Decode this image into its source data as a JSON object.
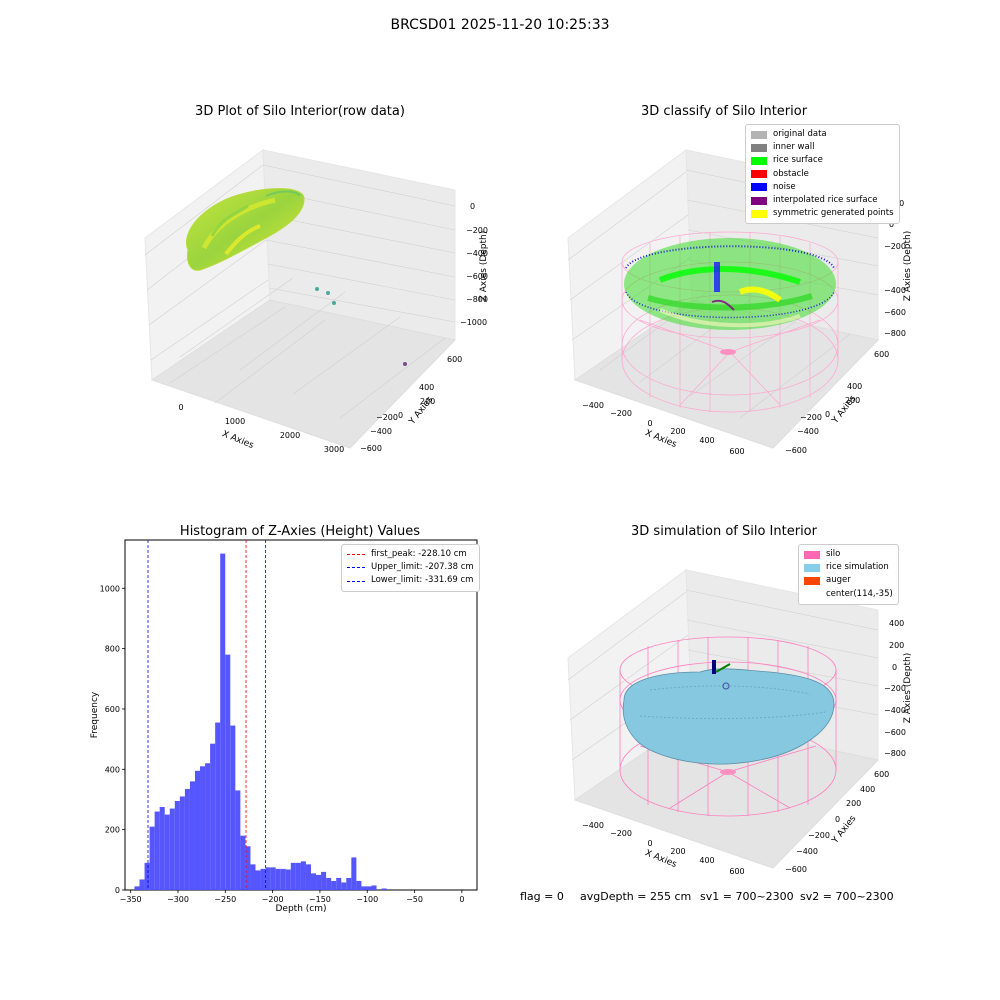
{
  "header": {
    "title": "BRCSD01 2025-11-20 10:25:33"
  },
  "panels": {
    "raw": {
      "title": "3D Plot of Silo Interior(row data)",
      "xlabel": "X Axies",
      "ylabel": "Y Axies",
      "zlabel": "Z Axies (Depth)",
      "xticks": [
        "0",
        "1000",
        "2000",
        "3000"
      ],
      "yticks": [
        "600",
        "400",
        "200",
        "0",
        "−200",
        "−400",
        "−600"
      ],
      "zticks": [
        "0",
        "−200",
        "−400",
        "−600",
        "−800",
        "−1000"
      ]
    },
    "classify": {
      "title": "3D classify of Silo Interior",
      "xlabel": "X Axies",
      "ylabel": "Y Axies",
      "zlabel": "Z Axies (Depth)",
      "xticks": [
        "−400",
        "−200",
        "0",
        "200",
        "400",
        "600"
      ],
      "yticks": [
        "600",
        "400",
        "200",
        "0",
        "−200",
        "−400",
        "−600"
      ],
      "zticks": [
        "200",
        "0",
        "−200",
        "−400",
        "−600",
        "−800"
      ],
      "legend": [
        {
          "label": "original data",
          "color": "#b3b3b3"
        },
        {
          "label": "inner wall",
          "color": "#808080"
        },
        {
          "label": "rice surface",
          "color": "#00ff00"
        },
        {
          "label": "obstacle",
          "color": "#ff0000"
        },
        {
          "label": "noise",
          "color": "#0000ff"
        },
        {
          "label": "interpolated rice surface",
          "color": "#800080"
        },
        {
          "label": "symmetric generated points",
          "color": "#ffff00"
        }
      ]
    },
    "simulation": {
      "title": "3D simulation of Silo Interior",
      "xlabel": "X Axies",
      "ylabel": "Y Axies",
      "zlabel": "Z Axies (Depth)",
      "xticks": [
        "−400",
        "−200",
        "0",
        "200",
        "400",
        "600"
      ],
      "yticks": [
        "600",
        "400",
        "200",
        "0",
        "−200",
        "−400",
        "−600"
      ],
      "zticks": [
        "400",
        "200",
        "0",
        "−200",
        "−400",
        "−600",
        "−800"
      ],
      "legend": [
        {
          "label": "silo",
          "color": "#ff69b4"
        },
        {
          "label": "rice simulation",
          "color": "#87ceeb"
        },
        {
          "label": "auger",
          "color": "#ff4500"
        },
        {
          "label": "center(114,-35)",
          "color": ""
        }
      ]
    }
  },
  "chart_data": [
    {
      "type": "histogram",
      "title": "Histogram of Z-Axies (Height) Values",
      "xlabel": "Depth (cm)",
      "ylabel": "Frequency",
      "xlim": [
        -356,
        16
      ],
      "ylim": [
        0,
        1160
      ],
      "xticks": [
        -350,
        -300,
        -250,
        -200,
        -150,
        -100,
        -50,
        0
      ],
      "xtick_labels": [
        "−350",
        "−300",
        "−250",
        "−200",
        "−150",
        "−100",
        "−50",
        "0"
      ],
      "yticks": [
        0,
        200,
        400,
        600,
        800,
        1000
      ],
      "color": "#4d4dff",
      "bin_start": -346,
      "bin_width": 5.33,
      "values": [
        12,
        35,
        90,
        210,
        260,
        275,
        250,
        270,
        295,
        310,
        335,
        360,
        395,
        410,
        420,
        485,
        555,
        1115,
        780,
        545,
        330,
        180,
        145,
        85,
        65,
        70,
        75,
        75,
        70,
        70,
        68,
        90,
        90,
        95,
        85,
        55,
        50,
        60,
        40,
        30,
        40,
        25,
        40,
        108,
        30,
        12,
        12,
        15,
        0,
        5
      ],
      "vlines": [
        {
          "x": -228.1,
          "color": "#ff0000",
          "label": "first_peak: -228.10 cm"
        },
        {
          "x": -207.38,
          "color": "#0000ff",
          "label": "Upper_limit: -207.38 cm"
        },
        {
          "x": -331.69,
          "color": "#0000ff",
          "label": "Lower_limit: -331.69 cm"
        }
      ],
      "legend_position": "top-right"
    }
  ],
  "footer": {
    "flag": "flag = 0",
    "avg": "avgDepth = 255 cm",
    "sv1": "sv1 = 700~2300",
    "sv2": "sv2 = 700~2300"
  }
}
